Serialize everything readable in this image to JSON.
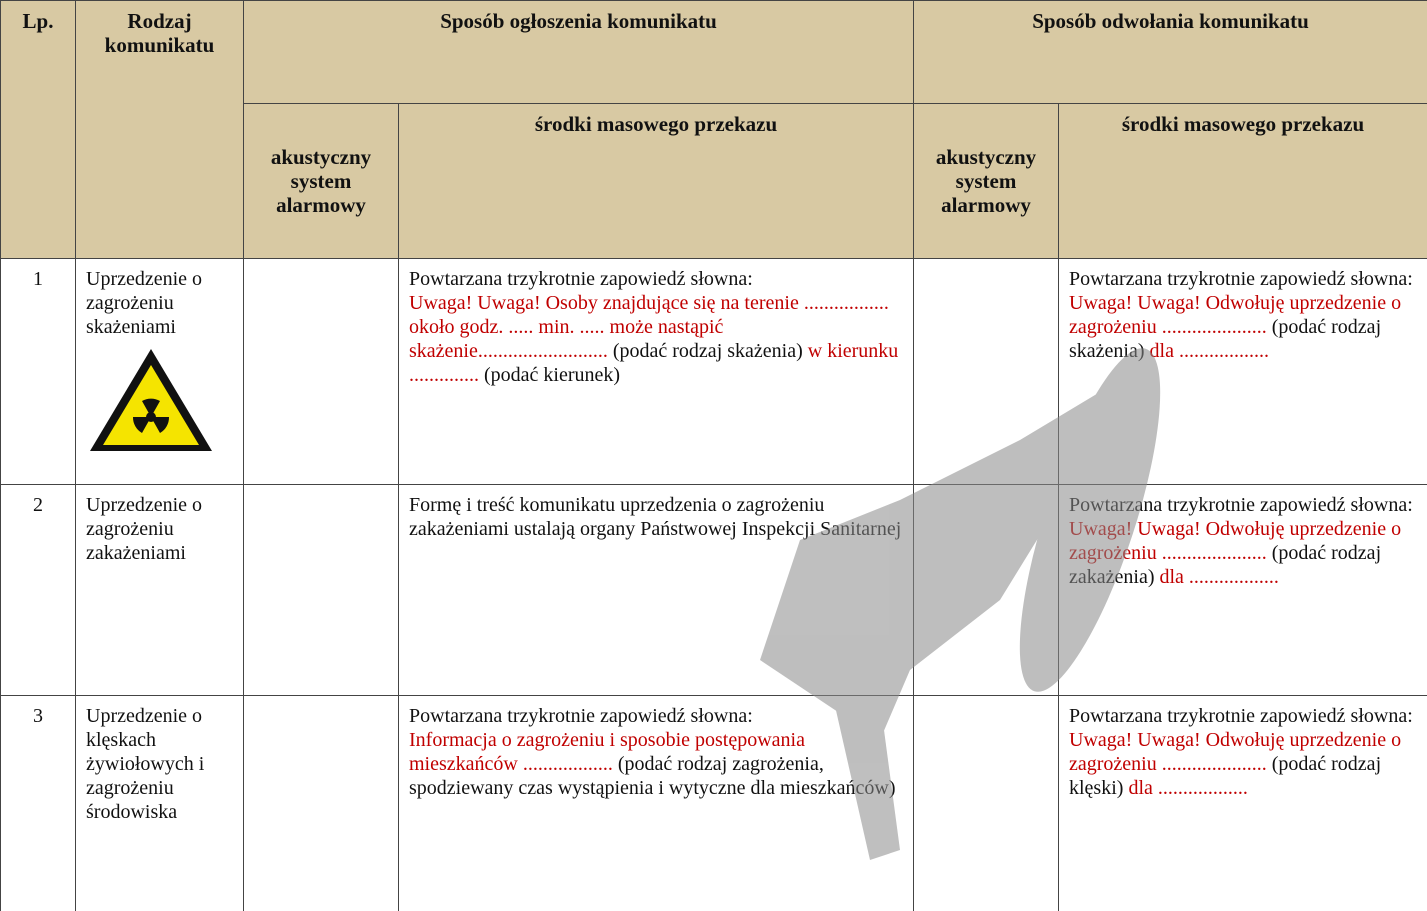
{
  "table": {
    "header": {
      "lp": "Lp.",
      "type": "Rodzaj komunikatu",
      "announce": "Sposób ogłoszenia komunikatu",
      "cancel": "Sposób odwołania komunikatu",
      "announce_acoustic": "akustyczny system alarmowy",
      "announce_media": "środki masowego przekazu",
      "cancel_acoustic": "akustyczny system alarmowy",
      "cancel_media": "środki masowego przekazu",
      "background": "#d8c9a3"
    },
    "rows": [
      {
        "lp": "1",
        "type": "Uprzedzenie o zagrożeniu skażeniami",
        "announce_media": [
          "Powtarzana trzykrotnie zapowiedź słowna:",
          {
            "text": "Uwaga! Uwaga! Osoby znajdujące się na terenie ................. około godz. ..... min. ..... może nastąpić skażenie..........................",
            "color": "#c00000"
          },
          " (podać rodzaj skażenia) ",
          {
            "text": "w kierunku ..............",
            "color": "#c00000"
          },
          " (podać kierunek)"
        ],
        "cancel_media": [
          "Powtarzana trzykrotnie zapowiedź słowna:",
          {
            "text": "Uwaga! Uwaga! Odwołuję uprzedzenie o zagrożeniu .....................",
            "color": "#c00000"
          },
          " (podać rodzaj skażenia) ",
          {
            "text": "dla ..................",
            "color": "#c00000"
          }
        ]
      },
      {
        "lp": "2",
        "type": "Uprzedzenie o zagrożeniu zakażeniami",
        "announce_media": [
          "Formę i treść komunikatu uprzedzenia o zagrożeniu zakażeniami ustalają organy Państwowej Inspekcji Sanitarnej"
        ],
        "cancel_media": [
          "Powtarzana trzykrotnie zapowiedź słowna:",
          {
            "text": "Uwaga! Uwaga! Odwołuję uprzedzenie o zagrożeniu .....................",
            "color": "#c00000"
          },
          " (podać rodzaj zakażenia) ",
          {
            "text": "dla ..................",
            "color": "#c00000"
          }
        ]
      },
      {
        "lp": "3",
        "type": "Uprzedzenie o klęskach żywiołowych i zagrożeniu środowiska",
        "announce_media": [
          "Powtarzana trzykrotnie zapowiedź słowna:",
          {
            "text": "Informacja o zagrożeniu i sposobie postępowania mieszkańców ..................",
            "color": "#c00000"
          },
          " (podać rodzaj zagrożenia, spodziewany czas wystąpienia i wytyczne dla mieszkańców)"
        ],
        "cancel_media": [
          "Powtarzana trzykrotnie zapowiedź słowna:",
          {
            "text": "Uwaga! Uwaga! Odwołuję uprzedzenie o zagrożeniu .....................",
            "color": "#c00000"
          },
          " (podać rodzaj klęski) ",
          {
            "text": "dla ..................",
            "color": "#c00000"
          }
        ]
      }
    ]
  }
}
